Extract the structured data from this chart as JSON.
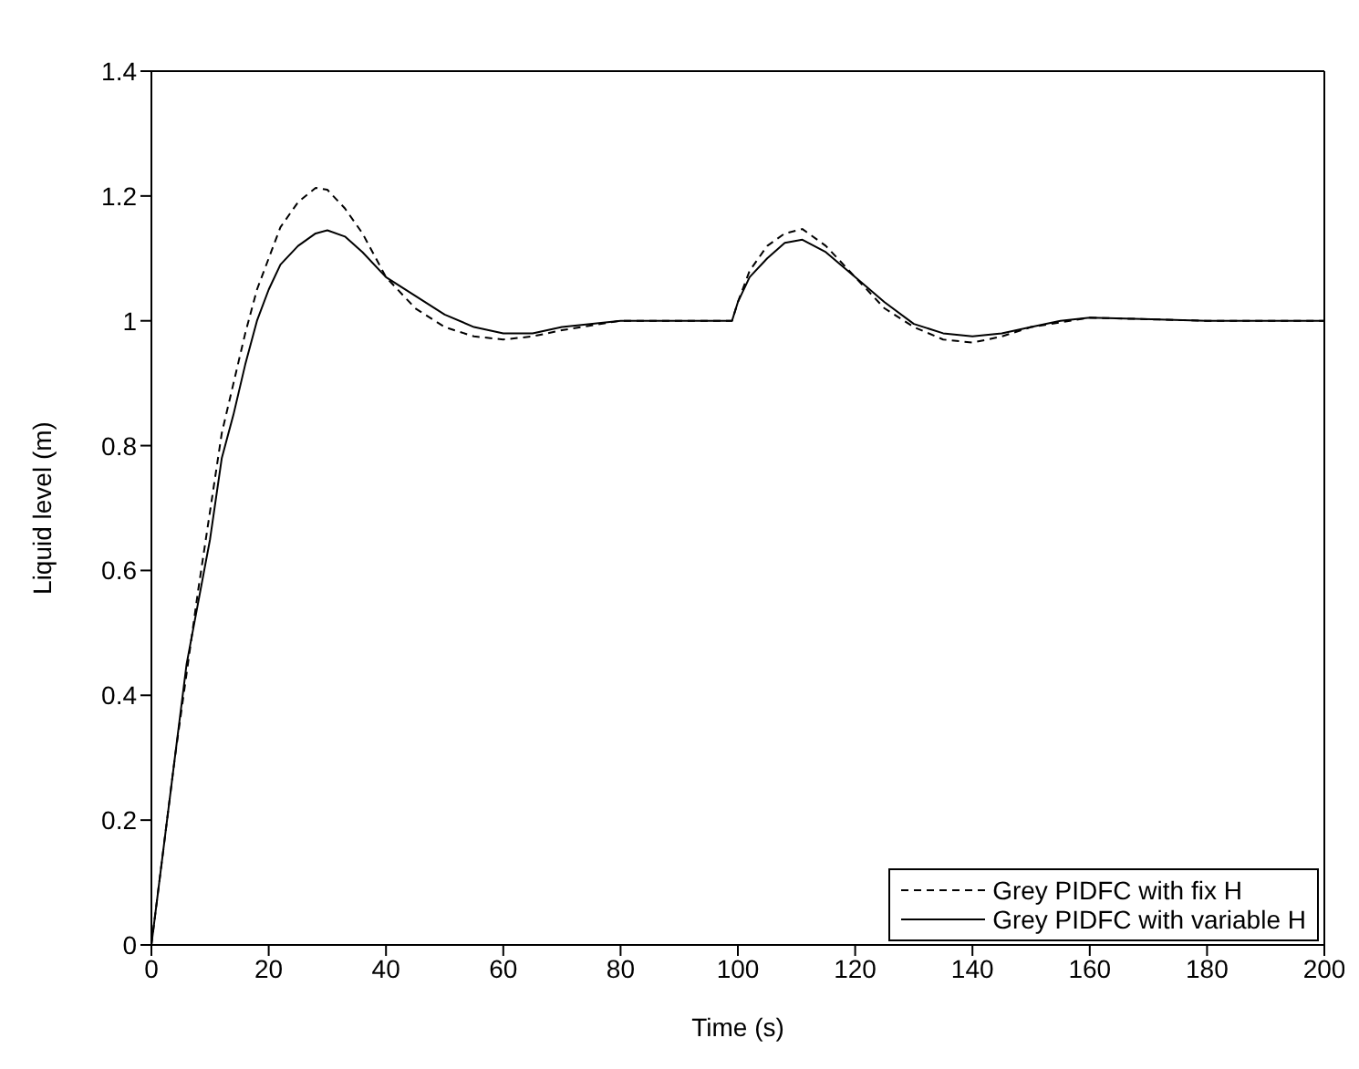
{
  "chart_data": {
    "type": "line",
    "xlabel": "Time (s)",
    "ylabel": "Liquid level (m)",
    "xlim": [
      0,
      200
    ],
    "xticks": [
      0,
      20,
      40,
      60,
      80,
      100,
      120,
      140,
      160,
      180,
      200
    ],
    "ylim": [
      0,
      1.4
    ],
    "yticks": [
      0,
      0.2,
      0.4,
      0.6,
      0.8,
      1,
      1.2,
      1.4
    ],
    "grid": false,
    "legend": "bottom right",
    "marker": "none",
    "series": [
      {
        "name": "Grey PIDFC with fix H",
        "color": "#000000",
        "line_style": "dashed",
        "x": [
          0,
          4,
          8,
          12,
          16,
          18,
          20,
          22,
          25,
          28,
          30,
          33,
          36,
          40,
          45,
          50,
          55,
          60,
          65,
          70,
          80,
          90,
          99,
          100,
          102,
          105,
          108,
          111,
          115,
          120,
          125,
          130,
          135,
          140,
          145,
          150,
          160,
          180,
          200
        ],
        "values": [
          0,
          0.3,
          0.57,
          0.82,
          0.98,
          1.05,
          1.1,
          1.15,
          1.19,
          1.213,
          1.21,
          1.18,
          1.14,
          1.07,
          1.02,
          0.99,
          0.975,
          0.97,
          0.975,
          0.985,
          1.0,
          1.0,
          1.0,
          1.03,
          1.08,
          1.12,
          1.14,
          1.147,
          1.12,
          1.07,
          1.02,
          0.99,
          0.97,
          0.965,
          0.975,
          0.99,
          1.005,
          1.0,
          1.0
        ]
      },
      {
        "name": "Grey PIDFC with variable H",
        "color": "#000000",
        "line_style": "solid",
        "x": [
          0,
          2,
          4,
          6,
          8,
          10,
          12,
          14,
          16,
          18,
          20,
          22,
          25,
          28,
          30,
          33,
          36,
          40,
          45,
          50,
          55,
          60,
          65,
          70,
          80,
          90,
          99,
          100,
          102,
          105,
          108,
          111,
          115,
          120,
          125,
          130,
          135,
          140,
          145,
          150,
          155,
          160,
          180,
          200
        ],
        "values": [
          0,
          0.15,
          0.3,
          0.45,
          0.55,
          0.65,
          0.78,
          0.85,
          0.93,
          1.0,
          1.05,
          1.09,
          1.12,
          1.14,
          1.145,
          1.135,
          1.11,
          1.07,
          1.04,
          1.01,
          0.99,
          0.98,
          0.98,
          0.99,
          1.0,
          1.0,
          1.0,
          1.03,
          1.07,
          1.1,
          1.125,
          1.13,
          1.11,
          1.07,
          1.03,
          0.995,
          0.98,
          0.975,
          0.98,
          0.99,
          1.0,
          1.005,
          1.0,
          1.0
        ]
      }
    ]
  }
}
